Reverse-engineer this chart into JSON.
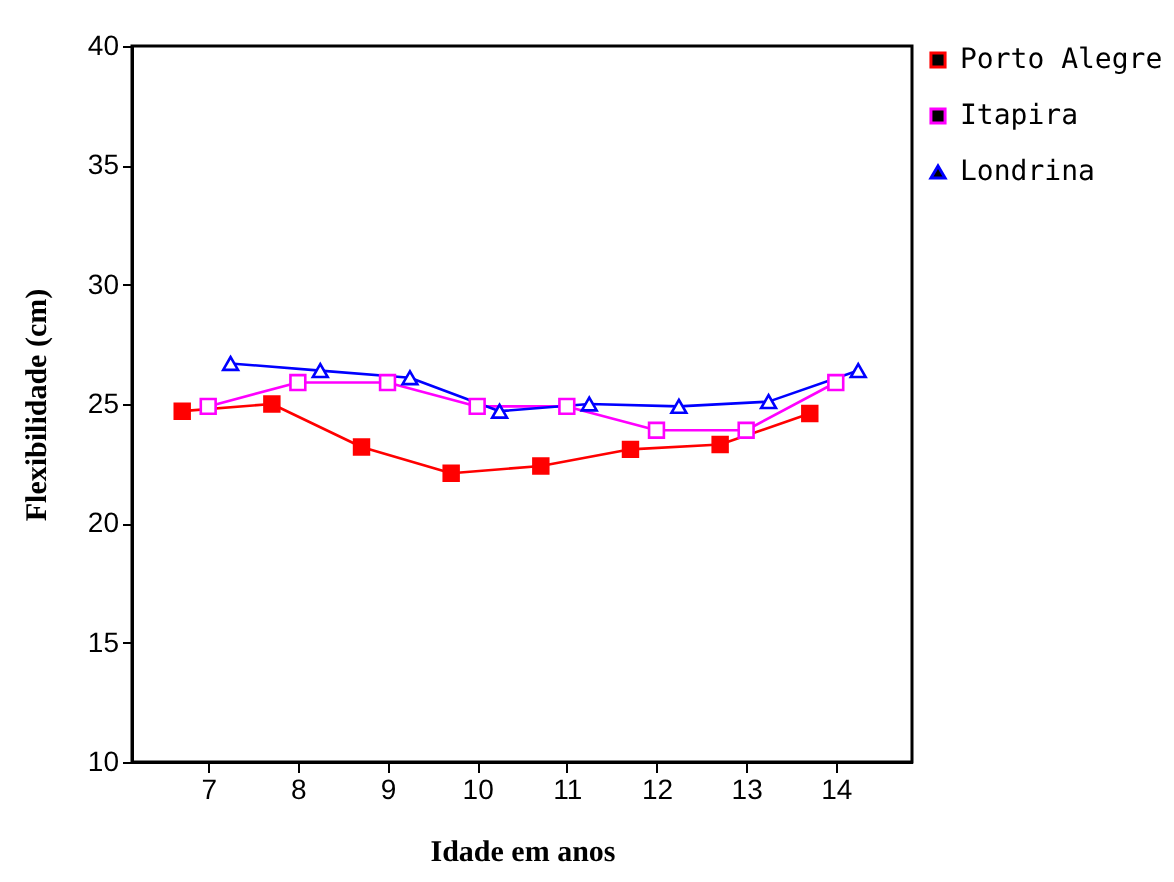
{
  "chart_data": {
    "type": "line",
    "xlabel": "Idade em anos",
    "ylabel": "Flexibilidade (cm)",
    "xlim": [
      6.15,
      14.85
    ],
    "xticks": [
      7,
      8,
      9,
      10,
      11,
      12,
      13,
      14
    ],
    "ylim": [
      10,
      40
    ],
    "yticks": [
      10,
      15,
      20,
      25,
      30,
      35,
      40
    ],
    "grid": false,
    "legend": "right",
    "line_style": "solid",
    "series": [
      {
        "name": "Porto Alegre",
        "color": "#ff0000",
        "marker": "square",
        "x": [
          6.71,
          7.71,
          8.71,
          9.71,
          10.71,
          11.71,
          12.71,
          13.71
        ],
        "values": [
          24.7,
          25.0,
          23.2,
          22.1,
          22.4,
          23.1,
          23.3,
          24.6
        ]
      },
      {
        "name": "Itapira",
        "color": "#ff00ff",
        "marker": "square",
        "x": [
          7,
          8,
          9,
          10,
          11,
          12,
          13,
          14
        ],
        "values": [
          24.9,
          25.9,
          25.9,
          24.9,
          24.9,
          23.9,
          23.9,
          25.9
        ]
      },
      {
        "name": "Londrina",
        "color": "#0000ff",
        "marker": "triangle",
        "x": [
          7.25,
          8.25,
          9.25,
          10.25,
          11.25,
          12.25,
          13.25,
          14.25
        ],
        "values": [
          26.7,
          26.4,
          26.1,
          24.7,
          25.0,
          24.9,
          25.1,
          26.4
        ]
      }
    ]
  }
}
